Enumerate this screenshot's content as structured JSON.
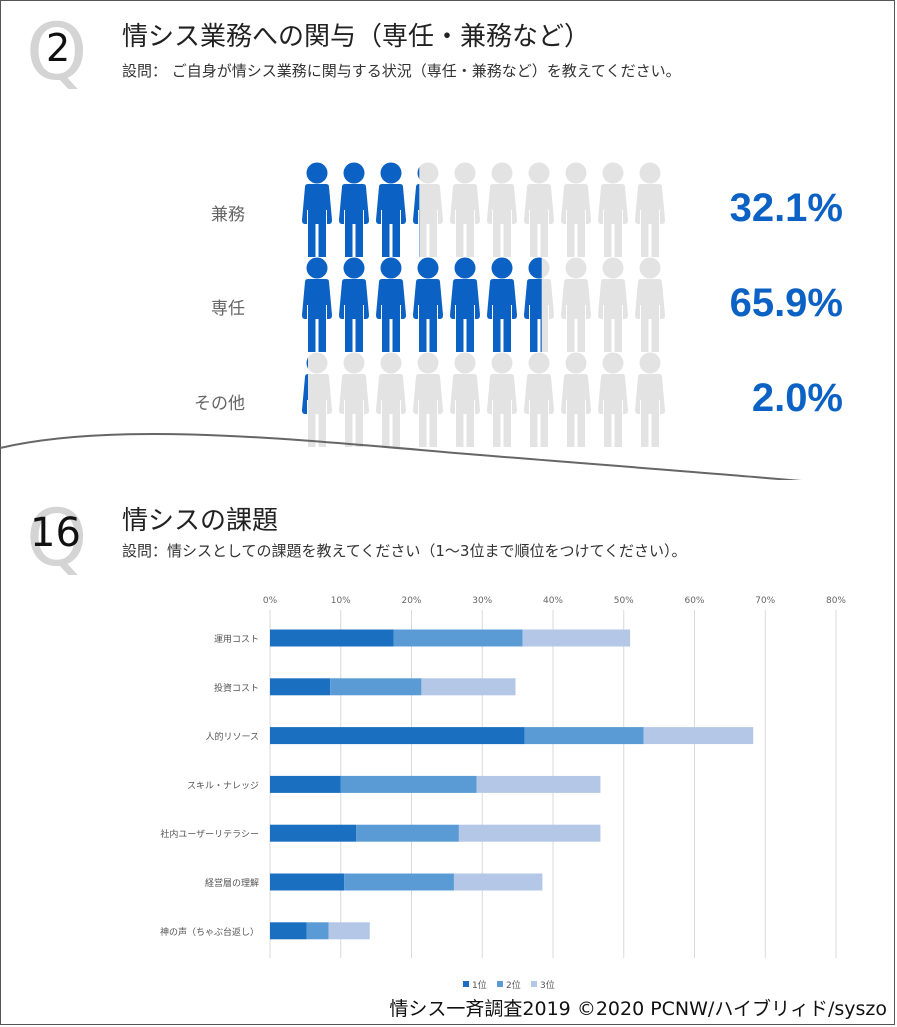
{
  "q1": {
    "number": "2",
    "title": "情シス業務への関与（専任・兼務など）",
    "subtitle": "設問： ご自身が情シス業務に関与する状況（専任・兼務など）を教えてください。"
  },
  "q2": {
    "number": "16",
    "title": "情シスの課題",
    "subtitle": "設問：情シスとしての課題を教えてください（1～3位まで順位をつけてください）。"
  },
  "footer": "情シス一斉調査2019 ©2020 PCNW/ハイブリィド/syszo",
  "colors": {
    "primary": "#0b62c4",
    "gray_icon": "#e3e3e3",
    "rank1": "#1a6fc1",
    "rank2": "#5b9bd5",
    "rank3": "#b4c7e7"
  },
  "chart_data": [
    {
      "type": "pictograph",
      "icons_per_row": 10,
      "rows": [
        {
          "label": "兼務",
          "value": 32.1,
          "value_label": "32.1%"
        },
        {
          "label": "専任",
          "value": 65.9,
          "value_label": "65.9%"
        },
        {
          "label": "その他",
          "value": 2.0,
          "value_label": "2.0%"
        }
      ]
    },
    {
      "type": "bar",
      "orientation": "horizontal",
      "stacked": true,
      "categories": [
        "運用コスト",
        "投資コスト",
        "人的リソース",
        "スキル・ナレッジ",
        "社内ユーザーリテラシー",
        "経営層の理解",
        "神の声（ちゃぶ台返し）"
      ],
      "series": [
        {
          "name": "1位",
          "values": [
            17.5,
            8.5,
            36.0,
            10.0,
            12.2,
            10.5,
            5.2
          ]
        },
        {
          "name": "2位",
          "values": [
            18.2,
            12.9,
            16.8,
            19.2,
            14.5,
            15.5,
            3.1
          ]
        },
        {
          "name": "3位",
          "values": [
            15.2,
            13.3,
            15.5,
            17.5,
            20.0,
            12.5,
            5.8
          ]
        }
      ],
      "xlim": [
        0,
        80
      ],
      "xticks": [
        "0%",
        "10%",
        "20%",
        "30%",
        "40%",
        "50%",
        "60%",
        "70%",
        "80%"
      ],
      "grid": true,
      "legend": "bottom"
    }
  ]
}
